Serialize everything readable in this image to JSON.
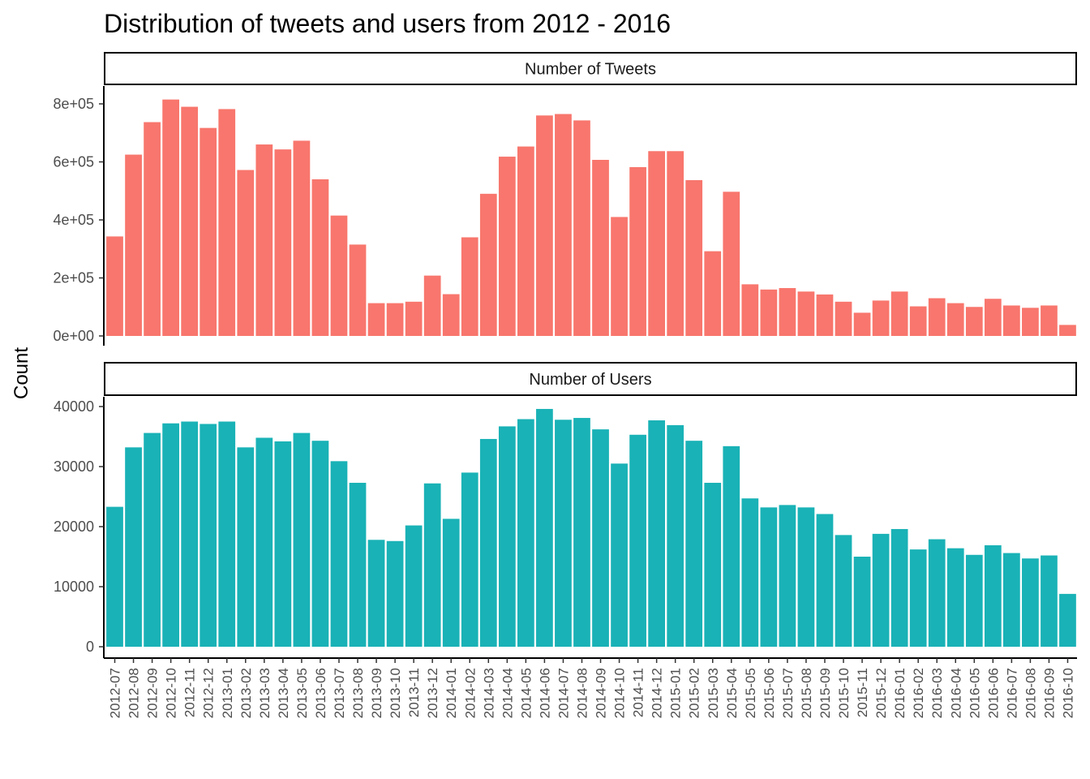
{
  "title": "Distribution of tweets and users from 2012 - 2016",
  "chart_data": {
    "type": "bar",
    "title": "Distribution of tweets and users from 2012 - 2016",
    "ylabel": "Count",
    "xlabel": "",
    "grid": false,
    "legend": "none",
    "categories": [
      "2012-07",
      "2012-08",
      "2012-09",
      "2012-10",
      "2012-11",
      "2012-12",
      "2013-01",
      "2013-02",
      "2013-03",
      "2013-04",
      "2013-05",
      "2013-06",
      "2013-07",
      "2013-08",
      "2013-09",
      "2013-10",
      "2013-11",
      "2013-12",
      "2014-01",
      "2014-02",
      "2014-03",
      "2014-04",
      "2014-05",
      "2014-06",
      "2014-07",
      "2014-08",
      "2014-09",
      "2014-10",
      "2014-11",
      "2014-12",
      "2015-01",
      "2015-02",
      "2015-03",
      "2015-04",
      "2015-05",
      "2015-06",
      "2015-07",
      "2015-08",
      "2015-09",
      "2015-10",
      "2015-11",
      "2015-12",
      "2016-01",
      "2016-02",
      "2016-03",
      "2016-04",
      "2016-05",
      "2016-06",
      "2016-07",
      "2016-08",
      "2016-09",
      "2016-10"
    ],
    "panels": [
      {
        "strip": "Number of Tweets",
        "color": "#F8766D",
        "ylim": [
          0,
          850000
        ],
        "yticks": [
          0,
          200000,
          400000,
          600000,
          800000
        ],
        "ytick_labels": [
          "0e+00",
          "2e+05",
          "4e+05",
          "6e+05",
          "8e+05"
        ],
        "values": [
          343000,
          625000,
          737000,
          815000,
          790000,
          717000,
          782000,
          572000,
          660000,
          643000,
          673000,
          540000,
          415000,
          315000,
          113000,
          113000,
          118000,
          208000,
          144000,
          340000,
          490000,
          618000,
          653000,
          760000,
          765000,
          743000,
          607000,
          410000,
          582000,
          637000,
          637000,
          537000,
          292000,
          497000,
          178000,
          160000,
          165000,
          153000,
          143000,
          118000,
          80000,
          122000,
          153000,
          102000,
          130000,
          113000,
          100000,
          128000,
          105000,
          97000,
          105000,
          38000
        ]
      },
      {
        "strip": "Number of Users",
        "color": "#19B2B6",
        "ylim": [
          0,
          40500
        ],
        "yticks": [
          0,
          10000,
          20000,
          30000,
          40000
        ],
        "ytick_labels": [
          "0",
          "10000",
          "20000",
          "30000",
          "40000"
        ],
        "values": [
          23300,
          33200,
          35600,
          37200,
          37500,
          37100,
          37500,
          33200,
          34800,
          34200,
          35600,
          34300,
          30900,
          27300,
          17800,
          17600,
          20200,
          27200,
          21300,
          29000,
          34600,
          36700,
          37900,
          39600,
          37800,
          38100,
          36200,
          30500,
          35300,
          37700,
          36900,
          34300,
          27300,
          33400,
          24700,
          23200,
          23600,
          23200,
          22100,
          18600,
          15000,
          18800,
          19600,
          16200,
          17900,
          16400,
          15300,
          16900,
          15600,
          14700,
          15200,
          8800
        ]
      }
    ]
  }
}
